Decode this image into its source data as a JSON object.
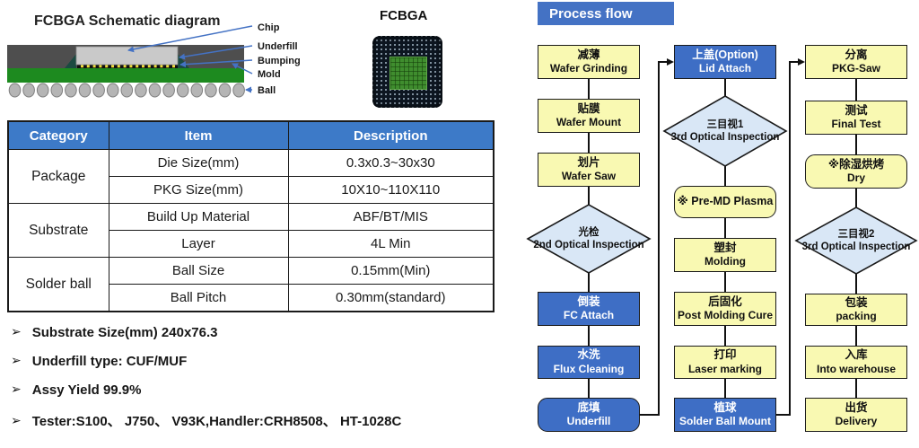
{
  "left": {
    "schematic_title": "FCBGA Schematic diagram",
    "labels": [
      "Chip",
      "Underfill",
      "Bumping",
      "Mold",
      "Ball"
    ],
    "photo_title": "FCBGA",
    "table": {
      "header_color": "#3d7ac8",
      "headers": [
        "Category",
        "Item",
        "Description"
      ],
      "groups": [
        {
          "category": "Package",
          "rows": [
            [
              "Die Size(mm)",
              "0.3x0.3~30x30"
            ],
            [
              "PKG Size(mm)",
              "10X10~110X110"
            ]
          ]
        },
        {
          "category": "Substrate",
          "rows": [
            [
              "Build Up Material",
              "ABF/BT/MIS"
            ],
            [
              "Layer",
              "4L Min"
            ]
          ]
        },
        {
          "category": "Solder ball",
          "rows": [
            [
              "Ball Size",
              "0.15mm(Min)"
            ],
            [
              "Ball Pitch",
              "0.30mm(standard)"
            ]
          ]
        }
      ]
    },
    "bullet_char": "➢",
    "bullets": [
      "Substrate Size(mm) 240x76.3",
      "Underfill type: CUF/MUF",
      "Assy Yield 99.9%",
      "Tester:S100、 J750、 V93K,Handler:CRH8508、 HT-1028C"
    ]
  },
  "flow": {
    "title": "Process flow",
    "colors": {
      "yellow": "#f9f9b2",
      "blue": "#3e6ec5",
      "diamond": "#d9e7f6",
      "header": "#4472c4",
      "line": "#111111"
    },
    "columns": [
      [
        {
          "zh": "减薄",
          "en": "Wafer Grinding",
          "type": "yellow"
        },
        {
          "zh": "贴膜",
          "en": "Wafer Mount",
          "type": "yellow"
        },
        {
          "zh": "划片",
          "en": "Wafer Saw",
          "type": "yellow"
        },
        {
          "zh": "光检",
          "en": "2nd Optical Inspection",
          "type": "diamond"
        },
        {
          "zh": "倒装",
          "en": "FC Attach",
          "type": "blue"
        },
        {
          "zh": "水洗",
          "en": "Flux Cleaning",
          "type": "blue"
        },
        {
          "zh": "底填",
          "en": "Underfill",
          "type": "blue-round"
        }
      ],
      [
        {
          "zh": "上盖(Option)",
          "en": "Lid Attach",
          "type": "blue"
        },
        {
          "zh": "三目视1",
          "en": "3rd Optical Inspection",
          "type": "diamond"
        },
        {
          "zh": "※ Pre-MD Plasma",
          "en": "",
          "type": "yellow-round"
        },
        {
          "zh": "塑封",
          "en": "Molding",
          "type": "yellow"
        },
        {
          "zh": "后固化",
          "en": "Post Molding Cure",
          "type": "yellow"
        },
        {
          "zh": "打印",
          "en": "Laser marking",
          "type": "yellow"
        },
        {
          "zh": "植球",
          "en": "Solder Ball Mount",
          "type": "blue"
        }
      ],
      [
        {
          "zh": "分离",
          "en": "PKG-Saw",
          "type": "yellow"
        },
        {
          "zh": "测试",
          "en": "Final Test",
          "type": "yellow"
        },
        {
          "zh": "※除湿烘烤",
          "en": "Dry",
          "type": "yellow-round"
        },
        {
          "zh": "三目视2",
          "en": "3rd Optical Inspection",
          "type": "diamond"
        },
        {
          "zh": "包装",
          "en": "packing",
          "type": "yellow"
        },
        {
          "zh": "入库",
          "en": "Into warehouse",
          "type": "yellow"
        },
        {
          "zh": "出货",
          "en": "Delivery",
          "type": "yellow"
        }
      ]
    ]
  }
}
